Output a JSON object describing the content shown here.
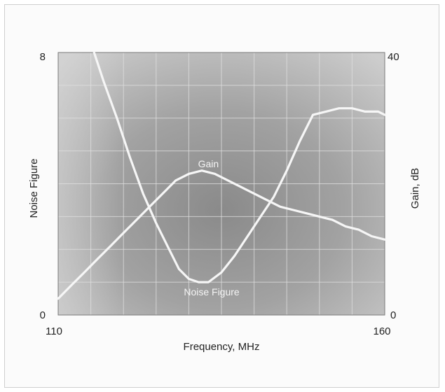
{
  "chart_data": {
    "type": "line",
    "xlabel": "Frequency, MHz",
    "ylabel_left": "Noise Figure",
    "ylabel_right": "Gain, dB",
    "xlim": [
      110,
      160
    ],
    "ylim_left": [
      0,
      8
    ],
    "ylim_right": [
      0,
      40
    ],
    "x_ticks": [
      "110",
      "160"
    ],
    "y_left_ticks": [
      "0",
      "8"
    ],
    "y_right_ticks": [
      "0",
      "40"
    ],
    "grid": true,
    "grid_divisions": {
      "x": 10,
      "y": 8
    },
    "series": [
      {
        "name": "Noise Figure",
        "axis": "left",
        "x": [
          115.5,
          117,
          119,
          121,
          123,
          125,
          127,
          128.5,
          130,
          131.5,
          133,
          135,
          137,
          139,
          141,
          143,
          145,
          147,
          149,
          151,
          153,
          155,
          157,
          159,
          160
        ],
        "y": [
          8.0,
          7.1,
          6.0,
          4.8,
          3.7,
          2.8,
          2.0,
          1.4,
          1.1,
          1.0,
          1.0,
          1.3,
          1.8,
          2.4,
          3.0,
          3.6,
          4.4,
          5.3,
          6.1,
          6.2,
          6.3,
          6.3,
          6.2,
          6.2,
          6.1
        ]
      },
      {
        "name": "Gain",
        "axis": "right",
        "x": [
          110,
          112,
          114,
          116,
          118,
          120,
          122,
          124,
          126,
          128,
          130,
          132,
          134,
          136,
          138,
          140,
          142,
          144,
          146,
          148,
          150,
          152,
          154,
          156,
          158,
          160
        ],
        "y": [
          2.5,
          4.5,
          6.5,
          8.5,
          10.5,
          12.5,
          14.5,
          16.5,
          18.5,
          20.5,
          21.5,
          22,
          21.5,
          20.5,
          19.5,
          18.5,
          17.5,
          16.5,
          16,
          15.5,
          15,
          14.5,
          13.5,
          13,
          12,
          11.5
        ]
      }
    ],
    "annotations": [
      {
        "text": "Gain",
        "x": 133,
        "y_left": 4.5
      },
      {
        "text": "Noise Figure",
        "x": 133.5,
        "y_left": 0.6
      }
    ]
  }
}
